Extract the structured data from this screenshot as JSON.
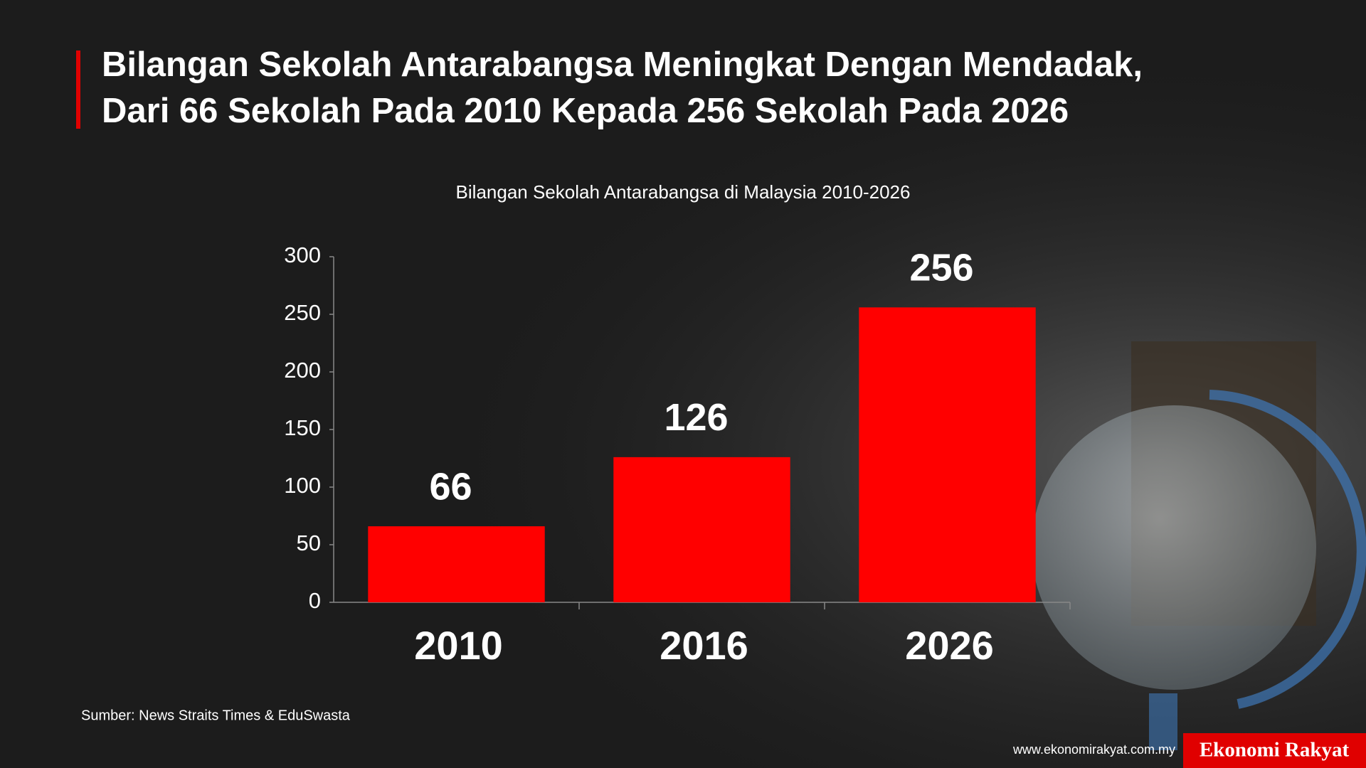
{
  "chart_data": {
    "type": "bar",
    "title_lines": [
      "Bilangan Sekolah Antarabangsa Meningkat Dengan Mendadak,",
      "Dari 66 Sekolah Pada 2010 Kepada 256 Sekolah Pada 2026"
    ],
    "subtitle": "Bilangan Sekolah Antarabangsa di Malaysia 2010-2026",
    "categories": [
      "2010",
      "2016",
      "2026"
    ],
    "values": [
      66,
      126,
      256
    ],
    "color": "#ff0000",
    "ylim": [
      0,
      300
    ],
    "yticks": [
      0,
      50,
      100,
      150,
      200,
      250,
      300
    ],
    "source": "Sumber: News Straits Times & EduSwasta",
    "website": "www.ekonomirakyat.com.my",
    "brand": "Ekonomi Rakyat"
  }
}
